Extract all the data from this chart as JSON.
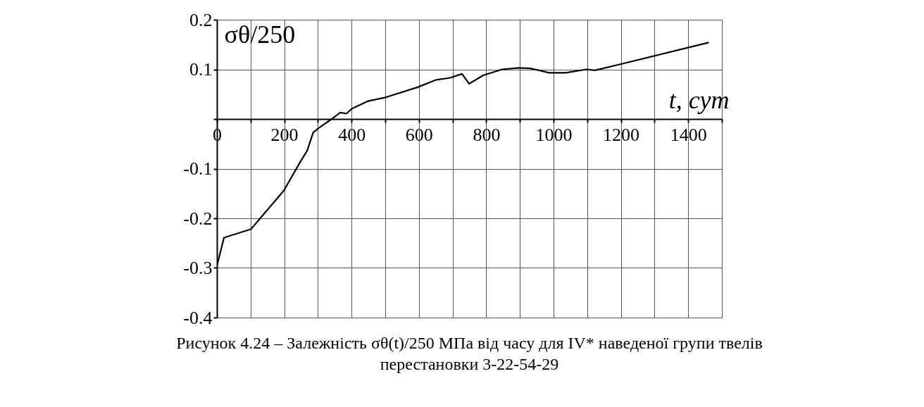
{
  "chart_data": {
    "type": "line",
    "xlabel": "t, сут",
    "ylabel": "σθ/250",
    "annotations": [
      "Рисунок 4.24 – Залежність σθ(t)/250 МПа від часу для IV* наведеної групи твелів",
      "перестановки 3-22-54-29"
    ],
    "x": [
      0,
      21,
      101,
      199,
      247,
      268,
      286,
      303,
      341,
      366,
      385,
      401,
      449,
      498,
      596,
      652,
      693,
      728,
      749,
      791,
      847,
      896,
      931,
      987,
      1036,
      1098,
      1123,
      1196,
      1461
    ],
    "series": [
      {
        "color": "#000000",
        "values": [
          -0.296,
          -0.239,
          -0.222,
          -0.144,
          -0.087,
          -0.064,
          -0.027,
          -0.018,
          0.0,
          0.013,
          0.011,
          0.021,
          0.036,
          0.043,
          0.064,
          0.079,
          0.083,
          0.091,
          0.071,
          0.088,
          0.1,
          0.103,
          0.102,
          0.093,
          0.093,
          0.1,
          0.098,
          0.11,
          0.154
        ]
      }
    ],
    "xlim": [
      0,
      1500
    ],
    "ylim": [
      -0.4,
      0.2
    ],
    "xticks": [
      0,
      {
        "value": 100,
        "label": null
      },
      200,
      {
        "value": 300,
        "label": null
      },
      400,
      {
        "value": 500,
        "label": null
      },
      600,
      {
        "value": 700,
        "label": null
      },
      800,
      {
        "value": 900,
        "label": null
      },
      1000,
      {
        "value": 1100,
        "label": null
      },
      1200,
      {
        "value": 1300,
        "label": null
      },
      1400,
      {
        "value": 1500,
        "label": null
      }
    ],
    "yticks": [
      0.2,
      0.1,
      {
        "value": 0,
        "label": null
      },
      -0.1,
      -0.2,
      -0.3,
      -0.4
    ],
    "grid": true,
    "line_style": "solid"
  }
}
